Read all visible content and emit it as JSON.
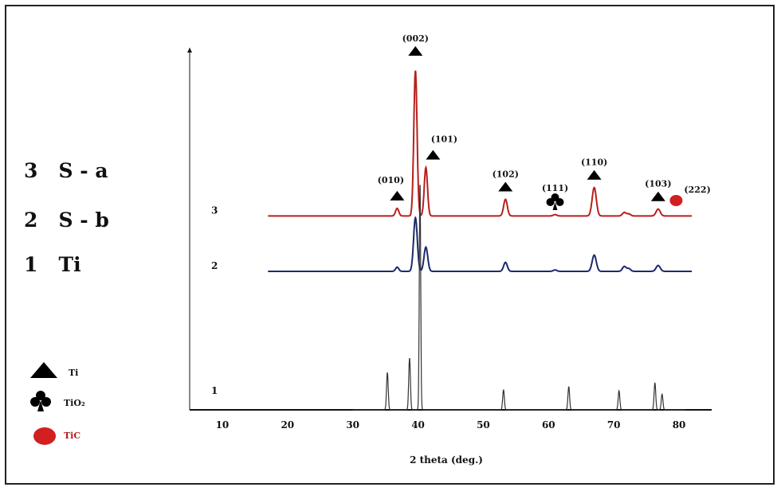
{
  "chart_data": {
    "type": "line",
    "xlabel": "2 theta (deg.)",
    "xticks": [
      10,
      20,
      30,
      40,
      50,
      60,
      70,
      80
    ],
    "xlim": [
      5,
      85
    ],
    "sample_labels": [
      {
        "key": "3",
        "text": "3   S - a"
      },
      {
        "key": "2",
        "text": "2   S - b"
      },
      {
        "key": "1",
        "text": "1   Ti"
      }
    ],
    "legend": [
      {
        "symbol": "triangle",
        "label": "Ti",
        "color": "#000000"
      },
      {
        "symbol": "club",
        "label": "TiO₂",
        "color": "#000000"
      },
      {
        "symbol": "circle",
        "label": "TiC",
        "color": "#d21f1f"
      }
    ],
    "series": [
      {
        "key": "3",
        "color": "#b8201c",
        "offset": 0.56,
        "xrange": [
          17,
          82
        ],
        "peaks": [
          {
            "x": 36.8,
            "h": 0.022,
            "w": 0.35
          },
          {
            "x": 39.6,
            "h": 0.42,
            "w": 0.35
          },
          {
            "x": 41.2,
            "h": 0.14,
            "w": 0.35
          },
          {
            "x": 53.4,
            "h": 0.048,
            "w": 0.4
          },
          {
            "x": 61.0,
            "h": 0.004,
            "w": 0.4
          },
          {
            "x": 67.0,
            "h": 0.082,
            "w": 0.45
          },
          {
            "x": 71.6,
            "h": 0.01,
            "w": 0.4
          },
          {
            "x": 72.3,
            "h": 0.006,
            "w": 0.4
          },
          {
            "x": 76.8,
            "h": 0.02,
            "w": 0.45
          }
        ]
      },
      {
        "key": "2",
        "color": "#1c2a6e",
        "offset": 0.4,
        "xrange": [
          17,
          82
        ],
        "peaks": [
          {
            "x": 36.8,
            "h": 0.012,
            "w": 0.35
          },
          {
            "x": 39.6,
            "h": 0.155,
            "w": 0.4
          },
          {
            "x": 41.2,
            "h": 0.07,
            "w": 0.4
          },
          {
            "x": 53.4,
            "h": 0.026,
            "w": 0.4
          },
          {
            "x": 61.0,
            "h": 0.004,
            "w": 0.4
          },
          {
            "x": 67.0,
            "h": 0.047,
            "w": 0.45
          },
          {
            "x": 71.6,
            "h": 0.014,
            "w": 0.4
          },
          {
            "x": 72.3,
            "h": 0.008,
            "w": 0.4
          },
          {
            "x": 76.8,
            "h": 0.017,
            "w": 0.45
          }
        ]
      },
      {
        "key": "1",
        "color": "#333333",
        "offset": 0.0,
        "xrange": [
          30,
          81
        ],
        "peaks": [
          {
            "x": 35.3,
            "h": 0.108,
            "w": 0.18
          },
          {
            "x": 38.7,
            "h": 0.15,
            "w": 0.18
          },
          {
            "x": 40.3,
            "h": 0.66,
            "w": 0.15
          },
          {
            "x": 53.1,
            "h": 0.058,
            "w": 0.18
          },
          {
            "x": 63.1,
            "h": 0.067,
            "w": 0.18
          },
          {
            "x": 70.8,
            "h": 0.055,
            "w": 0.18
          },
          {
            "x": 76.3,
            "h": 0.078,
            "w": 0.18
          },
          {
            "x": 77.4,
            "h": 0.045,
            "w": 0.18
          }
        ]
      }
    ],
    "annotations": [
      {
        "text": "(002)",
        "x": 39.6,
        "symbol": "triangle",
        "color": "#000000"
      },
      {
        "text": "(101)",
        "x": 41.2,
        "symbol": "triangle",
        "color": "#000000"
      },
      {
        "text": "(010)",
        "x": 36.8,
        "symbol": "triangle",
        "color": "#000000"
      },
      {
        "text": "(102)",
        "x": 53.4,
        "symbol": "triangle",
        "color": "#000000"
      },
      {
        "text": "(111)",
        "x": 61.0,
        "symbol": "club",
        "color": "#000000"
      },
      {
        "text": "(110)",
        "x": 67.0,
        "symbol": "triangle",
        "color": "#000000"
      },
      {
        "text": "(103)",
        "x": 76.8,
        "symbol": "triangle",
        "color": "#000000"
      },
      {
        "text": "(222)",
        "x": 79.8,
        "symbol": "circle",
        "color": "#d21f1f"
      }
    ]
  }
}
